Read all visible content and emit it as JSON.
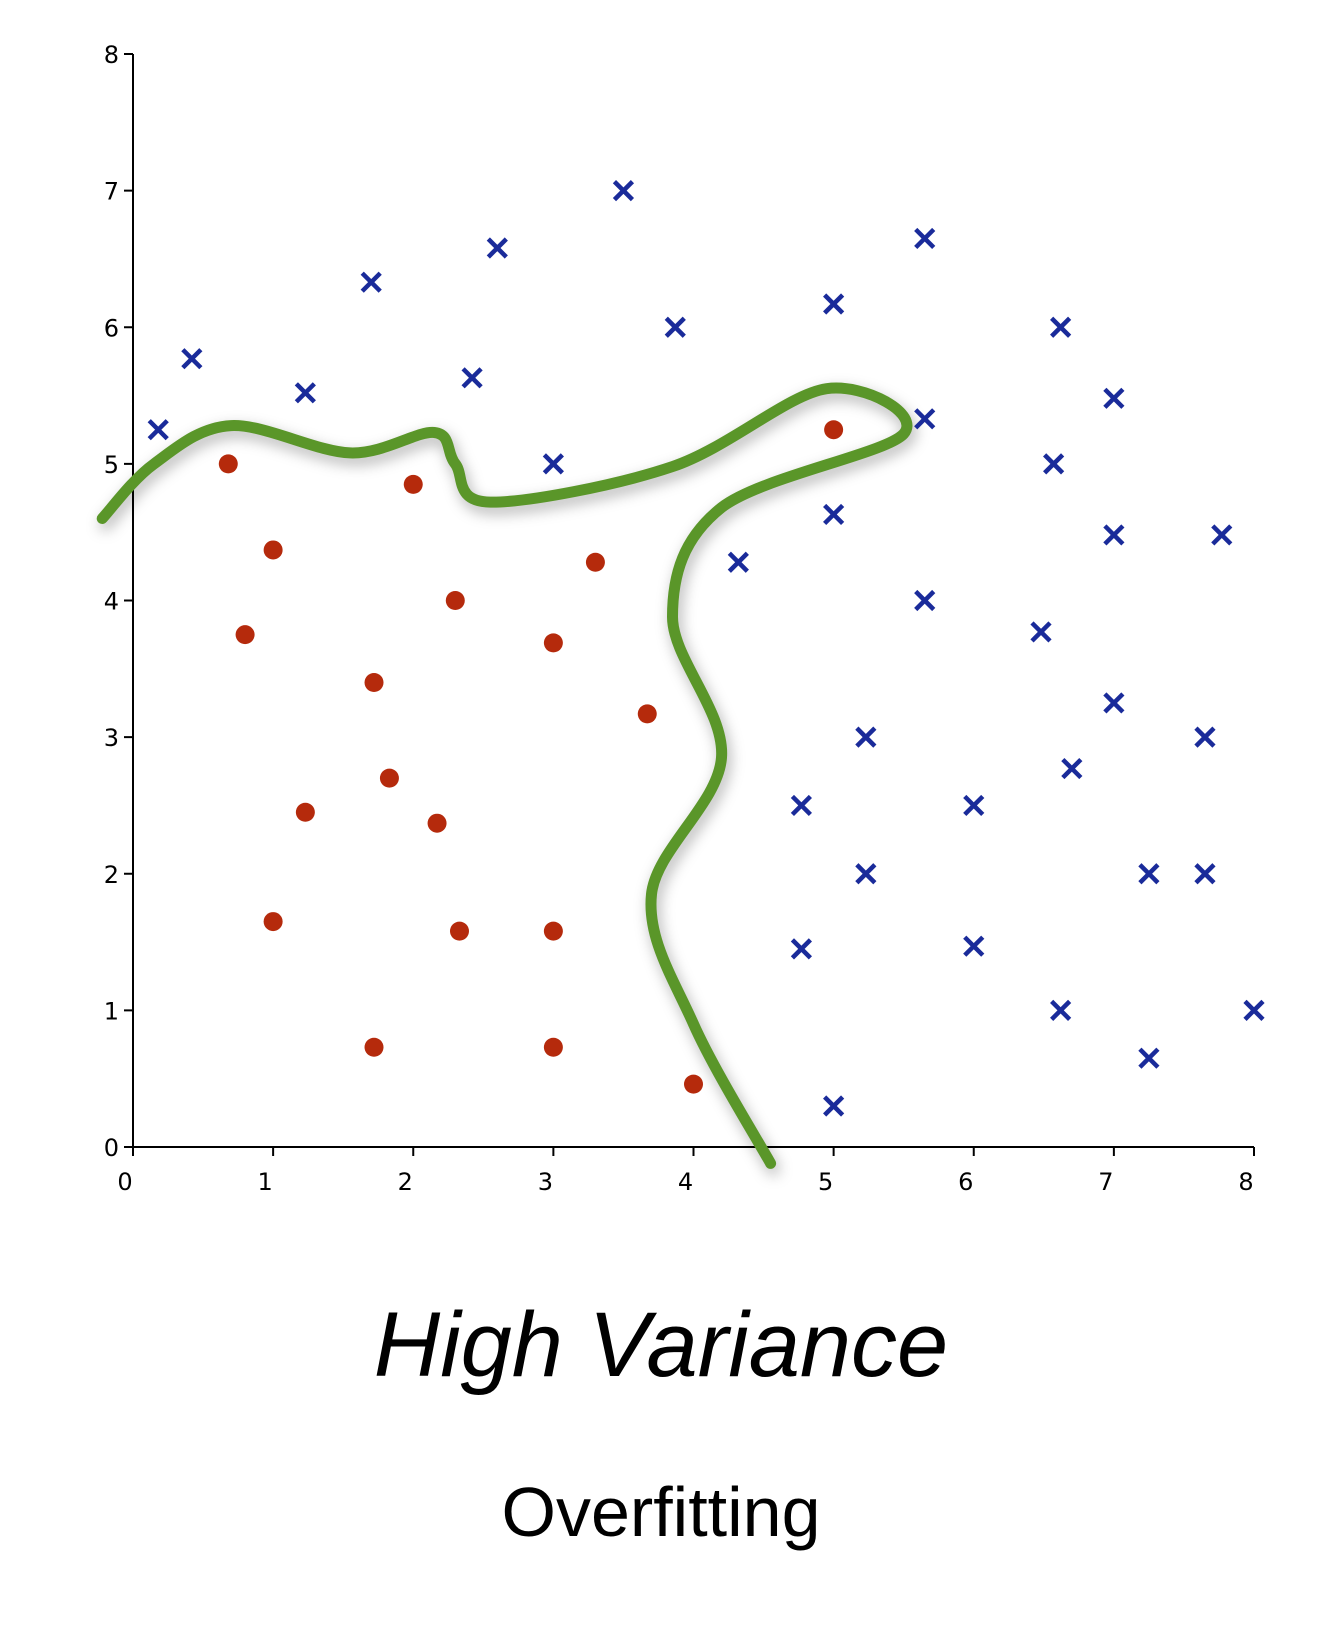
{
  "chart_data": {
    "type": "scatter",
    "title": "High Variance",
    "subtitle": "Overfitting",
    "xlabel": "",
    "ylabel": "",
    "xlim": [
      0,
      8
    ],
    "ylim": [
      0,
      8
    ],
    "x_ticks": [
      "0",
      "1",
      "2",
      "3",
      "4",
      "5",
      "6",
      "7",
      "8"
    ],
    "y_ticks": [
      "0",
      "1",
      "2",
      "3",
      "4",
      "5",
      "6",
      "7",
      "8"
    ],
    "grid": false,
    "legend": "none",
    "series": [
      {
        "marker": "circle",
        "color": "#b52a0c",
        "points": [
          [
            0.68,
            5.0
          ],
          [
            2.0,
            4.85
          ],
          [
            1.0,
            4.37
          ],
          [
            3.3,
            4.28
          ],
          [
            2.3,
            4.0
          ],
          [
            0.8,
            3.75
          ],
          [
            3.0,
            3.69
          ],
          [
            1.72,
            3.4
          ],
          [
            3.67,
            3.17
          ],
          [
            1.83,
            2.7
          ],
          [
            1.23,
            2.45
          ],
          [
            2.17,
            2.37
          ],
          [
            1.0,
            1.65
          ],
          [
            2.33,
            1.58
          ],
          [
            3.0,
            1.58
          ],
          [
            1.72,
            0.73
          ],
          [
            3.0,
            0.73
          ],
          [
            4.0,
            0.46
          ],
          [
            5.0,
            5.25
          ]
        ]
      },
      {
        "marker": "x",
        "color": "#1a2b9a",
        "points": [
          [
            0.18,
            5.25
          ],
          [
            0.42,
            5.77
          ],
          [
            1.23,
            5.52
          ],
          [
            1.7,
            6.33
          ],
          [
            2.42,
            5.63
          ],
          [
            2.6,
            6.58
          ],
          [
            3.0,
            5.0
          ],
          [
            3.5,
            7.0
          ],
          [
            3.87,
            6.0
          ],
          [
            5.0,
            6.17
          ],
          [
            5.65,
            6.65
          ],
          [
            5.65,
            5.33
          ],
          [
            6.62,
            6.0
          ],
          [
            7.0,
            5.48
          ],
          [
            6.57,
            5.0
          ],
          [
            5.0,
            4.63
          ],
          [
            4.32,
            4.28
          ],
          [
            5.65,
            4.0
          ],
          [
            6.48,
            3.77
          ],
          [
            7.0,
            4.48
          ],
          [
            7.77,
            4.48
          ],
          [
            7.0,
            3.25
          ],
          [
            6.7,
            2.77
          ],
          [
            7.65,
            3.0
          ],
          [
            5.23,
            3.0
          ],
          [
            4.77,
            2.5
          ],
          [
            6.0,
            2.5
          ],
          [
            5.23,
            2.0
          ],
          [
            7.25,
            2.0
          ],
          [
            7.65,
            2.0
          ],
          [
            4.77,
            1.45
          ],
          [
            6.0,
            1.47
          ],
          [
            6.62,
            1.0
          ],
          [
            8.0,
            1.0
          ],
          [
            7.25,
            0.65
          ],
          [
            5.0,
            0.3
          ]
        ]
      }
    ],
    "boundary": {
      "color": "#5a9629",
      "points": [
        [
          -0.22,
          4.6
        ],
        [
          0.15,
          5.0
        ],
        [
          0.7,
          5.28
        ],
        [
          1.55,
          5.08
        ],
        [
          2.15,
          5.23
        ],
        [
          2.3,
          5.0
        ],
        [
          2.55,
          4.72
        ],
        [
          3.85,
          4.98
        ],
        [
          4.95,
          5.55
        ],
        [
          5.5,
          5.22
        ],
        [
          4.2,
          4.68
        ],
        [
          3.85,
          3.88
        ],
        [
          4.2,
          2.85
        ],
        [
          3.7,
          1.85
        ],
        [
          4.0,
          0.9
        ],
        [
          4.55,
          -0.12
        ]
      ]
    }
  }
}
